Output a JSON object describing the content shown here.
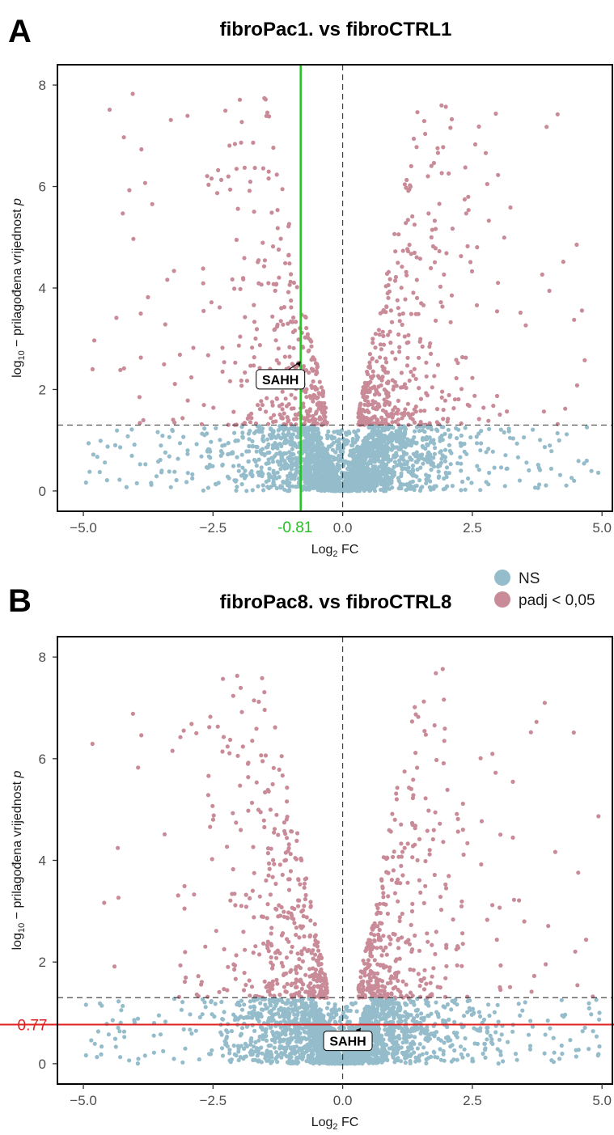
{
  "legend": {
    "position": "top-right",
    "items": [
      {
        "label": "NS",
        "color": "#94bcca"
      },
      {
        "label": "padj < 0,05",
        "color": "#c98b98"
      }
    ]
  },
  "chart_data": [
    {
      "panel": "A",
      "type": "scatter",
      "title": "fibroPac1. vs fibroCTRL1",
      "xlabel": {
        "main": "Log",
        "sub": "2",
        "rest": " FC"
      },
      "ylabel": {
        "sub": "10",
        "pre": "log",
        "rest": " − prilagođena vrijednost ",
        "italic": "p"
      },
      "x_ticks": [
        "−5.0",
        "−2.5",
        "0.0",
        "2.5",
        "5.0"
      ],
      "y_ticks": [
        "0",
        "2",
        "4",
        "6",
        "8"
      ],
      "xlim": [
        -5.5,
        5.2
      ],
      "ylim": [
        -0.4,
        8.4
      ],
      "grid": false,
      "threshold_y": 1.3,
      "center_x": 0,
      "reference_line": {
        "axis": "x",
        "value": -0.81,
        "label": "-0.81",
        "color": "#22c322"
      },
      "annotation": {
        "label": "SAHH",
        "x": -0.81,
        "y": 2.55,
        "label_x": -1.2,
        "label_y": 2.2
      },
      "series": [
        {
          "name": "NS",
          "color": "#94bcca",
          "region": "below-threshold"
        },
        {
          "name": "padj < 0,05",
          "color": "#c98b98",
          "region": "above-threshold"
        }
      ]
    },
    {
      "panel": "B",
      "type": "scatter",
      "title": "fibroPac8. vs fibroCTRL8",
      "xlabel": {
        "main": "Log",
        "sub": "2",
        "rest": " FC"
      },
      "ylabel": {
        "sub": "10",
        "pre": "log",
        "rest": " − prilagođena vrijednost ",
        "italic": "p"
      },
      "x_ticks": [
        "−5.0",
        "−2.5",
        "0.0",
        "2.5",
        "5.0"
      ],
      "y_ticks": [
        "0",
        "2",
        "4",
        "6",
        "8"
      ],
      "xlim": [
        -5.5,
        5.2
      ],
      "ylim": [
        -0.4,
        8.4
      ],
      "grid": false,
      "threshold_y": 1.3,
      "center_x": 0,
      "reference_line": {
        "axis": "y",
        "value": 0.77,
        "label": "0.77",
        "color": "#dd2020"
      },
      "annotation": {
        "label": "SAHH",
        "x": 0.35,
        "y": 0.7,
        "label_x": 0.1,
        "label_y": 0.45
      },
      "series": [
        {
          "name": "NS",
          "color": "#94bcca",
          "region": "below-threshold"
        },
        {
          "name": "padj < 0,05",
          "color": "#c98b98",
          "region": "above-threshold"
        }
      ]
    }
  ]
}
